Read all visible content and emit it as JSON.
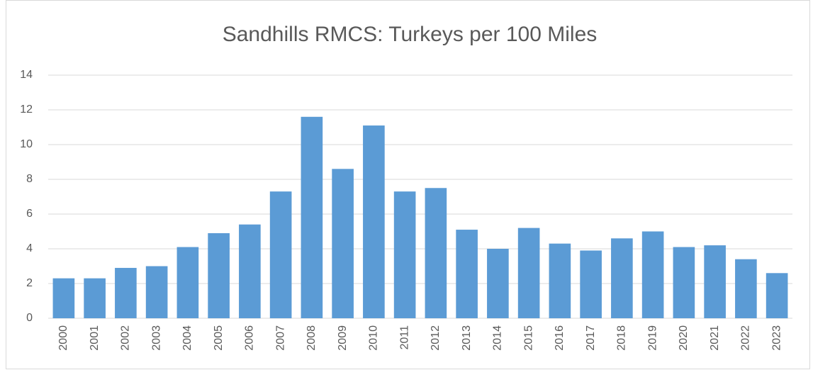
{
  "chart_data": {
    "type": "bar",
    "title": "Sandhills RMCS: Turkeys per 100 Miles",
    "categories": [
      "2000",
      "2001",
      "2002",
      "2003",
      "2004",
      "2005",
      "2006",
      "2007",
      "2008",
      "2009",
      "2010",
      "2011",
      "2012",
      "2013",
      "2014",
      "2015",
      "2016",
      "2017",
      "2018",
      "2019",
      "2020",
      "2021",
      "2022",
      "2023"
    ],
    "values": [
      2.3,
      2.3,
      2.9,
      3.0,
      4.1,
      4.9,
      5.4,
      7.3,
      11.6,
      8.6,
      11.1,
      7.3,
      7.5,
      5.1,
      4.0,
      5.2,
      4.3,
      3.9,
      4.6,
      5.0,
      4.1,
      4.2,
      3.4,
      2.6
    ],
    "color": "#5b9bd5",
    "ylim": [
      0,
      14
    ],
    "yticks": [
      0,
      2,
      4,
      6,
      8,
      10,
      12,
      14
    ],
    "grid": true
  }
}
